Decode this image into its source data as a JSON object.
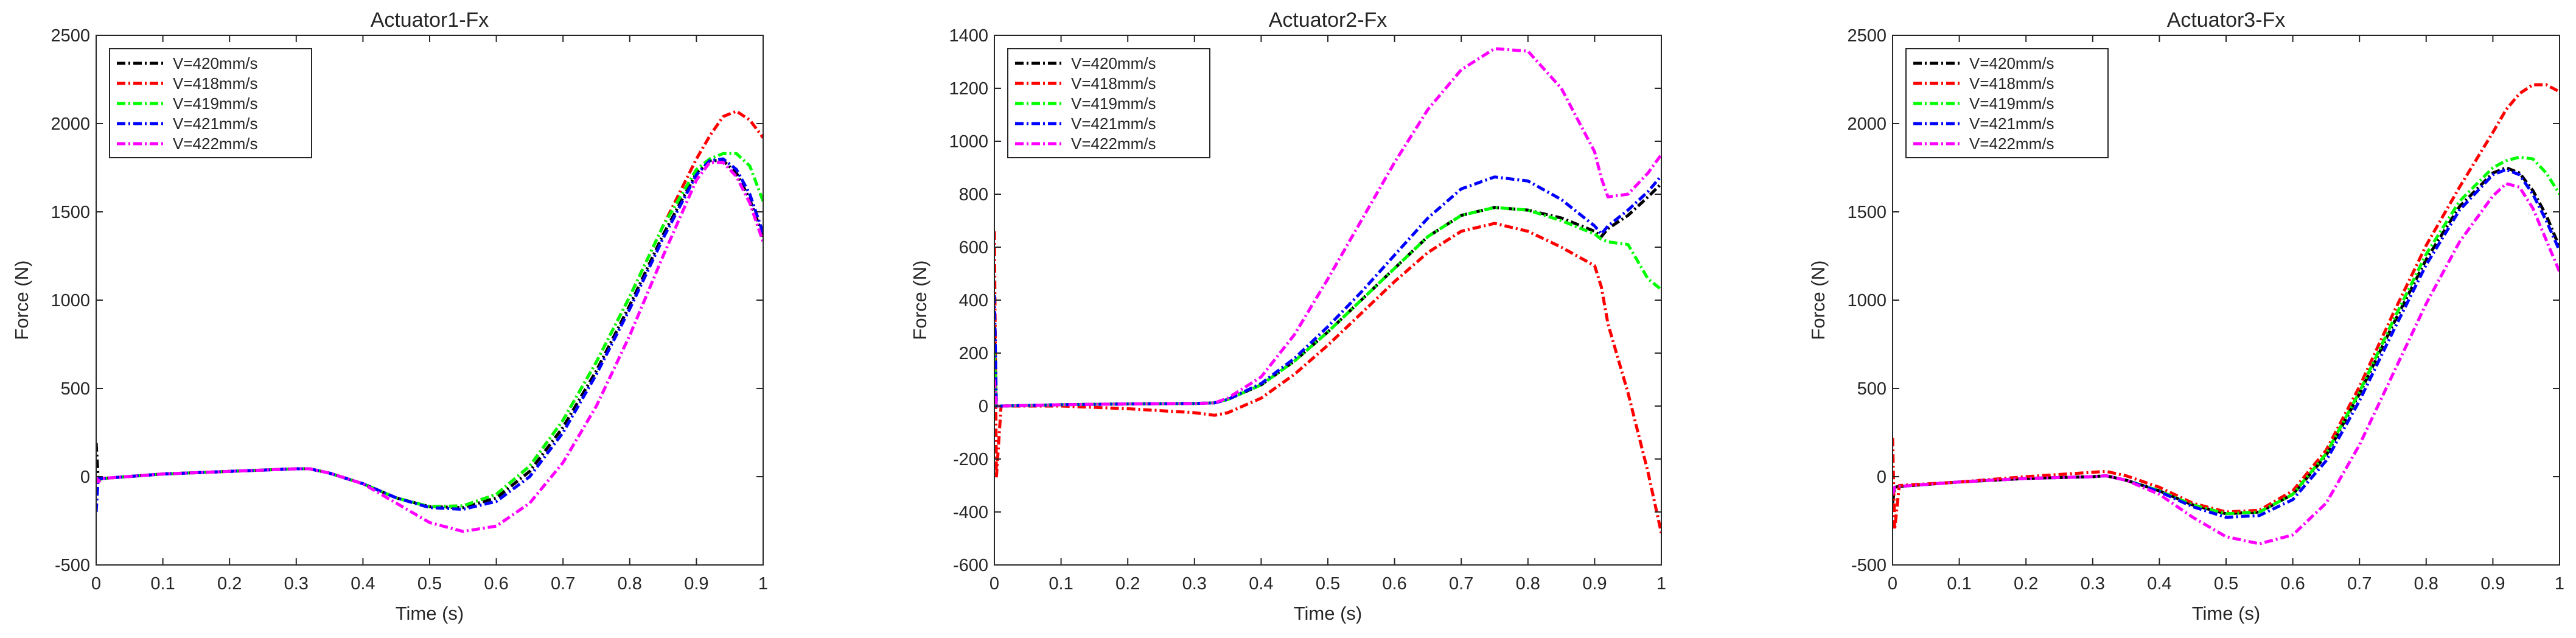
{
  "figure": {
    "description_count": 3
  },
  "colors": {
    "V=420mm/s": "#000000",
    "V=418mm/s": "#ff0000",
    "V=419mm/s": "#00ff00",
    "V=421mm/s": "#0000ff",
    "V=422mm/s": "#ff00ff"
  },
  "chart_data": [
    {
      "type": "line",
      "title": "Actuator1-Fx",
      "xlabel": "Time (s)",
      "ylabel": "Force (N)",
      "xlim": [
        0,
        1
      ],
      "ylim": [
        -500,
        2500
      ],
      "xticks": [
        0,
        0.1,
        0.2,
        0.3,
        0.4,
        0.5,
        0.6,
        0.7,
        0.8,
        0.9,
        1
      ],
      "xtick_labels": [
        "0",
        "0.1",
        "0.2",
        "0.3",
        "0.4",
        "0.5",
        "0.6",
        "0.7",
        "0.8",
        "0.9",
        "1"
      ],
      "yticks": [
        -500,
        0,
        500,
        1000,
        1500,
        2000,
        2500
      ],
      "ytick_labels": [
        "-500",
        "0",
        "500",
        "1000",
        "1500",
        "2000",
        "2500"
      ],
      "legend": {
        "location": "top-left",
        "entries": [
          "V=420mm/s",
          "V=418mm/s",
          "V=419mm/s",
          "V=421mm/s",
          "V=422mm/s"
        ]
      },
      "series": [
        {
          "name": "V=420mm/s",
          "x": [
            0,
            0.003,
            0.01,
            0.1,
            0.2,
            0.3,
            0.32,
            0.35,
            0.4,
            0.45,
            0.5,
            0.55,
            0.6,
            0.65,
            0.7,
            0.75,
            0.8,
            0.85,
            0.9,
            0.92,
            0.94,
            0.96,
            0.98,
            1.0
          ],
          "y": [
            190,
            -10,
            -10,
            15,
            30,
            45,
            45,
            20,
            -40,
            -120,
            -170,
            -175,
            -120,
            30,
            280,
            600,
            970,
            1370,
            1720,
            1790,
            1790,
            1720,
            1570,
            1360
          ]
        },
        {
          "name": "V=418mm/s",
          "x": [
            0,
            0.003,
            0.01,
            0.1,
            0.2,
            0.3,
            0.32,
            0.35,
            0.4,
            0.45,
            0.5,
            0.55,
            0.6,
            0.65,
            0.7,
            0.75,
            0.8,
            0.85,
            0.9,
            0.92,
            0.94,
            0.96,
            0.98,
            1.0
          ],
          "y": [
            0,
            -20,
            -10,
            15,
            30,
            45,
            45,
            20,
            -40,
            -120,
            -170,
            -165,
            -100,
            60,
            320,
            650,
            1020,
            1420,
            1800,
            1930,
            2040,
            2070,
            2020,
            1920
          ]
        },
        {
          "name": "V=419mm/s",
          "x": [
            0,
            0.003,
            0.01,
            0.1,
            0.2,
            0.3,
            0.32,
            0.35,
            0.4,
            0.45,
            0.5,
            0.55,
            0.6,
            0.65,
            0.7,
            0.75,
            0.8,
            0.85,
            0.9,
            0.92,
            0.94,
            0.96,
            0.98,
            1.0
          ],
          "y": [
            0,
            -20,
            -10,
            15,
            30,
            45,
            45,
            20,
            -40,
            -120,
            -170,
            -165,
            -100,
            60,
            320,
            650,
            1020,
            1420,
            1740,
            1800,
            1830,
            1830,
            1760,
            1560
          ]
        },
        {
          "name": "V=421mm/s",
          "x": [
            0,
            0.003,
            0.01,
            0.1,
            0.2,
            0.3,
            0.32,
            0.35,
            0.4,
            0.45,
            0.5,
            0.55,
            0.6,
            0.65,
            0.7,
            0.75,
            0.8,
            0.85,
            0.9,
            0.92,
            0.94,
            0.96,
            0.98,
            1.0
          ],
          "y": [
            -200,
            -10,
            -10,
            15,
            30,
            45,
            45,
            20,
            -40,
            -120,
            -175,
            -185,
            -140,
            0,
            250,
            580,
            950,
            1350,
            1710,
            1790,
            1800,
            1740,
            1600,
            1380
          ]
        },
        {
          "name": "V=422mm/s",
          "x": [
            0,
            0.003,
            0.01,
            0.1,
            0.2,
            0.3,
            0.32,
            0.35,
            0.4,
            0.45,
            0.5,
            0.55,
            0.6,
            0.65,
            0.7,
            0.75,
            0.8,
            0.85,
            0.9,
            0.92,
            0.94,
            0.96,
            0.98,
            1.0
          ],
          "y": [
            0,
            -30,
            -10,
            15,
            30,
            45,
            45,
            20,
            -40,
            -150,
            -260,
            -310,
            -280,
            -150,
            80,
            400,
            800,
            1250,
            1680,
            1780,
            1780,
            1700,
            1550,
            1330
          ]
        }
      ]
    },
    {
      "type": "line",
      "title": "Actuator2-Fx",
      "xlabel": "Time (s)",
      "ylabel": "Force (N)",
      "xlim": [
        0,
        1
      ],
      "ylim": [
        -600,
        1400
      ],
      "xticks": [
        0,
        0.1,
        0.2,
        0.3,
        0.4,
        0.5,
        0.6,
        0.7,
        0.8,
        0.9,
        1
      ],
      "xtick_labels": [
        "0",
        "0.1",
        "0.2",
        "0.3",
        "0.4",
        "0.5",
        "0.6",
        "0.7",
        "0.8",
        "0.9",
        "1"
      ],
      "yticks": [
        -600,
        -400,
        -200,
        0,
        200,
        400,
        600,
        800,
        1000,
        1200,
        1400
      ],
      "ytick_labels": [
        "-600",
        "-400",
        "-200",
        "0",
        "200",
        "400",
        "600",
        "800",
        "1000",
        "1200",
        "1400"
      ],
      "legend": {
        "location": "top-left",
        "entries": [
          "V=420mm/s",
          "V=418mm/s",
          "V=419mm/s",
          "V=421mm/s",
          "V=422mm/s"
        ]
      },
      "series": [
        {
          "name": "V=420mm/s",
          "x": [
            0,
            0.003,
            0.01,
            0.1,
            0.2,
            0.3,
            0.33,
            0.35,
            0.4,
            0.45,
            0.5,
            0.55,
            0.6,
            0.65,
            0.7,
            0.75,
            0.8,
            0.85,
            0.9,
            0.91,
            0.92,
            0.95,
            0.98,
            1.0
          ],
          "y": [
            300,
            0,
            0,
            5,
            8,
            10,
            12,
            25,
            80,
            170,
            280,
            400,
            520,
            640,
            720,
            750,
            740,
            710,
            660,
            640,
            670,
            720,
            790,
            840
          ]
        },
        {
          "name": "V=418mm/s",
          "x": [
            0,
            0.003,
            0.01,
            0.1,
            0.2,
            0.3,
            0.33,
            0.35,
            0.4,
            0.45,
            0.5,
            0.55,
            0.6,
            0.65,
            0.7,
            0.75,
            0.8,
            0.85,
            0.9,
            0.91,
            0.92,
            0.95,
            0.98,
            1.0
          ],
          "y": [
            660,
            -270,
            0,
            0,
            -10,
            -25,
            -35,
            -25,
            30,
            120,
            230,
            350,
            470,
            580,
            660,
            690,
            660,
            600,
            530,
            450,
            310,
            50,
            -250,
            -480
          ]
        },
        {
          "name": "V=419mm/s",
          "x": [
            0,
            0.003,
            0.01,
            0.1,
            0.2,
            0.3,
            0.33,
            0.35,
            0.4,
            0.45,
            0.5,
            0.55,
            0.6,
            0.65,
            0.7,
            0.75,
            0.8,
            0.85,
            0.9,
            0.91,
            0.92,
            0.95,
            0.98,
            1.0
          ],
          "y": [
            200,
            0,
            0,
            5,
            8,
            10,
            12,
            25,
            80,
            170,
            280,
            400,
            520,
            640,
            720,
            750,
            740,
            700,
            650,
            630,
            620,
            610,
            480,
            440
          ]
        },
        {
          "name": "V=421mm/s",
          "x": [
            0,
            0.003,
            0.01,
            0.1,
            0.2,
            0.3,
            0.33,
            0.35,
            0.4,
            0.45,
            0.5,
            0.55,
            0.6,
            0.65,
            0.7,
            0.75,
            0.8,
            0.85,
            0.9,
            0.91,
            0.92,
            0.95,
            0.98,
            1.0
          ],
          "y": [
            420,
            0,
            0,
            5,
            8,
            10,
            12,
            25,
            85,
            180,
            300,
            430,
            570,
            710,
            820,
            865,
            850,
            780,
            680,
            650,
            680,
            740,
            810,
            870
          ]
        },
        {
          "name": "V=422mm/s",
          "x": [
            0,
            0.003,
            0.01,
            0.1,
            0.2,
            0.3,
            0.33,
            0.35,
            0.4,
            0.45,
            0.5,
            0.55,
            0.6,
            0.65,
            0.7,
            0.75,
            0.8,
            0.85,
            0.9,
            0.91,
            0.92,
            0.95,
            0.98,
            1.0
          ],
          "y": [
            100,
            0,
            0,
            5,
            8,
            10,
            12,
            30,
            110,
            270,
            480,
            700,
            920,
            1120,
            1270,
            1350,
            1340,
            1200,
            960,
            860,
            790,
            800,
            880,
            950
          ]
        }
      ]
    },
    {
      "type": "line",
      "title": "Actuator3-Fx",
      "xlabel": "Time (s)",
      "ylabel": "Force (N)",
      "xlim": [
        0,
        1
      ],
      "ylim": [
        -500,
        2500
      ],
      "xticks": [
        0,
        0.1,
        0.2,
        0.3,
        0.4,
        0.5,
        0.6,
        0.7,
        0.8,
        0.9,
        1
      ],
      "xtick_labels": [
        "0",
        "0.1",
        "0.2",
        "0.3",
        "0.4",
        "0.5",
        "0.6",
        "0.7",
        "0.8",
        "0.9",
        "1"
      ],
      "yticks": [
        -500,
        0,
        500,
        1000,
        1500,
        2000,
        2500
      ],
      "ytick_labels": [
        "-500",
        "0",
        "500",
        "1000",
        "1500",
        "2000",
        "2500"
      ],
      "legend": {
        "location": "top-left",
        "entries": [
          "V=420mm/s",
          "V=418mm/s",
          "V=419mm/s",
          "V=421mm/s",
          "V=422mm/s"
        ]
      },
      "series": [
        {
          "name": "V=420mm/s",
          "x": [
            0,
            0.003,
            0.01,
            0.1,
            0.2,
            0.3,
            0.32,
            0.35,
            0.4,
            0.45,
            0.5,
            0.55,
            0.6,
            0.65,
            0.7,
            0.75,
            0.8,
            0.85,
            0.9,
            0.92,
            0.94,
            0.96,
            0.98,
            1.0
          ],
          "y": [
            -150,
            -60,
            -55,
            -30,
            -10,
            0,
            5,
            -20,
            -80,
            -160,
            -210,
            -200,
            -100,
            120,
            470,
            860,
            1230,
            1530,
            1720,
            1750,
            1720,
            1620,
            1480,
            1300
          ]
        },
        {
          "name": "V=418mm/s",
          "x": [
            0,
            0.003,
            0.01,
            0.1,
            0.2,
            0.3,
            0.32,
            0.35,
            0.4,
            0.45,
            0.5,
            0.55,
            0.6,
            0.65,
            0.7,
            0.75,
            0.8,
            0.85,
            0.9,
            0.92,
            0.94,
            0.96,
            0.98,
            1.0
          ],
          "y": [
            220,
            -300,
            -50,
            -30,
            0,
            25,
            30,
            5,
            -60,
            -150,
            -200,
            -190,
            -80,
            150,
            510,
            920,
            1310,
            1640,
            1950,
            2080,
            2170,
            2220,
            2220,
            2180
          ]
        },
        {
          "name": "V=419mm/s",
          "x": [
            0,
            0.003,
            0.01,
            0.1,
            0.2,
            0.3,
            0.32,
            0.35,
            0.4,
            0.45,
            0.5,
            0.55,
            0.6,
            0.65,
            0.7,
            0.75,
            0.8,
            0.85,
            0.9,
            0.92,
            0.94,
            0.96,
            0.98,
            1.0
          ],
          "y": [
            -100,
            -60,
            -55,
            -30,
            -10,
            0,
            5,
            -20,
            -80,
            -160,
            -210,
            -200,
            -100,
            130,
            480,
            880,
            1260,
            1560,
            1750,
            1790,
            1810,
            1800,
            1720,
            1600
          ]
        },
        {
          "name": "V=421mm/s",
          "x": [
            0,
            0.003,
            0.01,
            0.1,
            0.2,
            0.3,
            0.32,
            0.35,
            0.4,
            0.45,
            0.5,
            0.55,
            0.6,
            0.65,
            0.7,
            0.75,
            0.8,
            0.85,
            0.9,
            0.92,
            0.94,
            0.96,
            0.98,
            1.0
          ],
          "y": [
            -100,
            -60,
            -55,
            -30,
            -10,
            0,
            5,
            -20,
            -85,
            -170,
            -230,
            -220,
            -130,
            90,
            430,
            820,
            1200,
            1510,
            1710,
            1740,
            1710,
            1600,
            1450,
            1280
          ]
        },
        {
          "name": "V=422mm/s",
          "x": [
            0,
            0.003,
            0.01,
            0.1,
            0.2,
            0.3,
            0.32,
            0.35,
            0.4,
            0.45,
            0.5,
            0.55,
            0.6,
            0.65,
            0.7,
            0.75,
            0.8,
            0.85,
            0.9,
            0.92,
            0.94,
            0.96,
            0.98,
            1.0
          ],
          "y": [
            -100,
            -60,
            -55,
            -30,
            -10,
            0,
            5,
            -20,
            -100,
            -230,
            -340,
            -380,
            -330,
            -150,
            180,
            580,
            980,
            1330,
            1590,
            1660,
            1640,
            1520,
            1340,
            1160
          ]
        }
      ]
    }
  ]
}
